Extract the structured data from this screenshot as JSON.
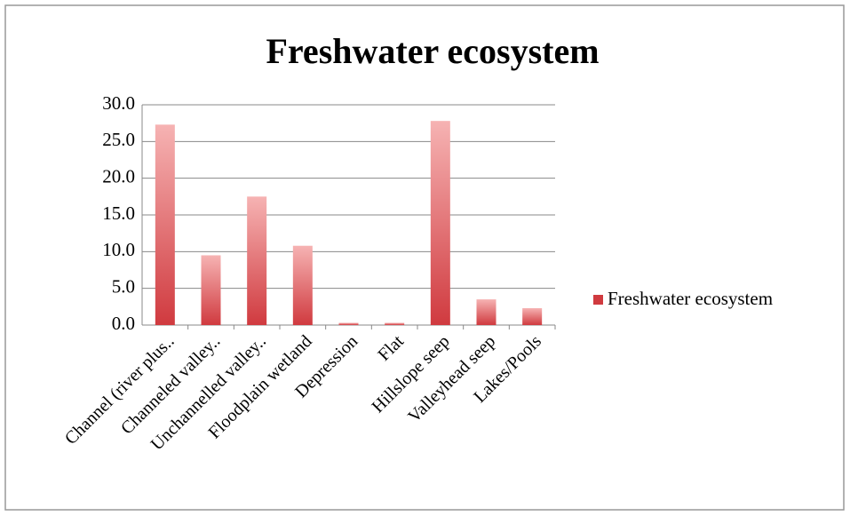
{
  "chart_data": {
    "type": "bar",
    "title": "Freshwater ecosystem",
    "categories": [
      "Channel (river plus..",
      "Channeled valley..",
      "Unchannelled valley..",
      "Floodplain wetland",
      "Depression",
      "Flat",
      "Hillslope seep",
      "Valleyhead seep",
      "Lakes/Pools"
    ],
    "series": [
      {
        "name": "Freshwater ecosystem",
        "color": "#d03a3f",
        "values": [
          27.3,
          9.5,
          17.5,
          10.8,
          0.3,
          0.3,
          27.8,
          3.5,
          2.3
        ]
      }
    ],
    "ylim": [
      0,
      30
    ],
    "yticks": [
      {
        "value": 0,
        "label": "0.0"
      },
      {
        "value": 5,
        "label": "5.0"
      },
      {
        "value": 10,
        "label": "10.0"
      },
      {
        "value": 15,
        "label": "15.0"
      },
      {
        "value": 20,
        "label": "20.0"
      },
      {
        "value": 25,
        "label": "25.0"
      },
      {
        "value": 30,
        "label": "30.0"
      }
    ],
    "grid": true,
    "legend": "right"
  }
}
